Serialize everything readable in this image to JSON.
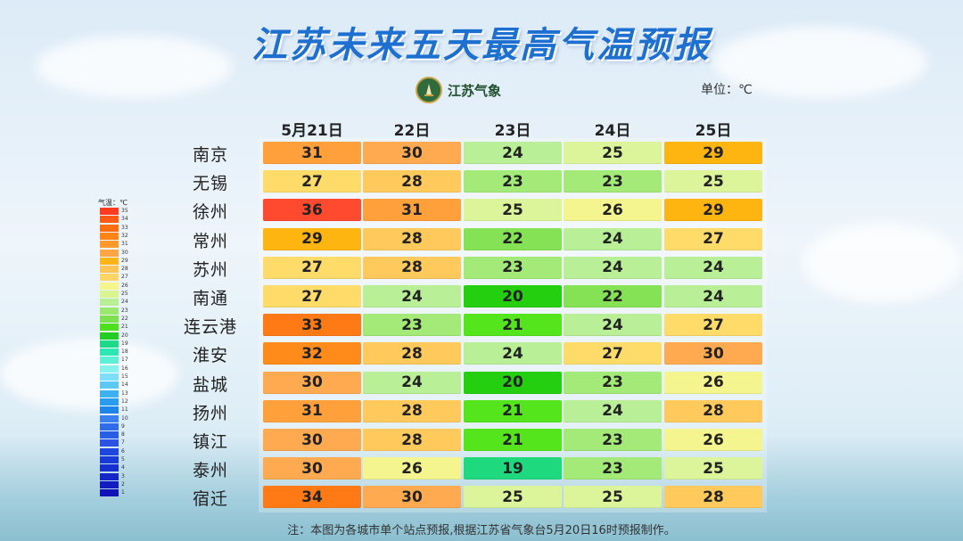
{
  "title": "江苏未来五天最高气温预报",
  "logo": {
    "text": "江苏气象"
  },
  "unit": "单位：℃",
  "footnote": "注：本图为各城市单个站点预报,根据江苏省气象台5月20日16时预报制作。",
  "legend": {
    "title": "气温：℃",
    "stops": [
      {
        "v": "35",
        "c": "#ff3b1f"
      },
      {
        "v": "34",
        "c": "#ff5a14"
      },
      {
        "v": "33",
        "c": "#ff6e0e"
      },
      {
        "v": "32",
        "c": "#ff8414"
      },
      {
        "v": "31",
        "c": "#ff9a2a"
      },
      {
        "v": "30",
        "c": "#ffa545"
      },
      {
        "v": "29",
        "c": "#ffb515"
      },
      {
        "v": "28",
        "c": "#ffc455"
      },
      {
        "v": "27",
        "c": "#ffd665"
      },
      {
        "v": "26",
        "c": "#f5f58a"
      },
      {
        "v": "25",
        "c": "#d8f590"
      },
      {
        "v": "24",
        "c": "#b8ef92"
      },
      {
        "v": "23",
        "c": "#9be86e"
      },
      {
        "v": "22",
        "c": "#7ee04e"
      },
      {
        "v": "21",
        "c": "#4ee01c"
      },
      {
        "v": "20",
        "c": "#22cc22"
      },
      {
        "v": "19",
        "c": "#1ed98a"
      },
      {
        "v": "18",
        "c": "#2ee6b4"
      },
      {
        "v": "17",
        "c": "#5ef0d6"
      },
      {
        "v": "16",
        "c": "#86f2ee"
      },
      {
        "v": "15",
        "c": "#7cdff7"
      },
      {
        "v": "14",
        "c": "#5ec8f5"
      },
      {
        "v": "13",
        "c": "#3eb2f1"
      },
      {
        "v": "12",
        "c": "#2a9ced"
      },
      {
        "v": "11",
        "c": "#1e86e8"
      },
      {
        "v": "10",
        "c": "#3a80ee"
      },
      {
        "v": "9",
        "c": "#2f6ce8"
      },
      {
        "v": "8",
        "c": "#285ee6"
      },
      {
        "v": "7",
        "c": "#2a52e4"
      },
      {
        "v": "6",
        "c": "#1f46de"
      },
      {
        "v": "5",
        "c": "#1a3ad8"
      },
      {
        "v": "4",
        "c": "#1630d0"
      },
      {
        "v": "3",
        "c": "#1426c8"
      },
      {
        "v": "2",
        "c": "#121cc0"
      },
      {
        "v": "1",
        "c": "#1012b5"
      }
    ]
  },
  "chart_data": {
    "type": "table",
    "title": "江苏未来五天最高气温预报",
    "columns": [
      "5月21日",
      "22日",
      "23日",
      "24日",
      "25日"
    ],
    "rows": [
      {
        "city": "南京",
        "values": [
          31,
          30,
          24,
          25,
          29
        ]
      },
      {
        "city": "无锡",
        "values": [
          27,
          28,
          23,
          23,
          25
        ]
      },
      {
        "city": "徐州",
        "values": [
          36,
          31,
          25,
          26,
          29
        ]
      },
      {
        "city": "常州",
        "values": [
          29,
          28,
          22,
          24,
          27
        ]
      },
      {
        "city": "苏州",
        "values": [
          27,
          28,
          23,
          24,
          24
        ]
      },
      {
        "city": "南通",
        "values": [
          27,
          24,
          20,
          22,
          24
        ]
      },
      {
        "city": "连云港",
        "values": [
          33,
          23,
          21,
          24,
          27
        ]
      },
      {
        "city": "淮安",
        "values": [
          32,
          28,
          24,
          27,
          30
        ]
      },
      {
        "city": "盐城",
        "values": [
          30,
          24,
          20,
          23,
          26
        ]
      },
      {
        "city": "扬州",
        "values": [
          31,
          28,
          21,
          24,
          28
        ]
      },
      {
        "city": "镇江",
        "values": [
          30,
          28,
          21,
          23,
          26
        ]
      },
      {
        "city": "泰州",
        "values": [
          30,
          26,
          19,
          23,
          25
        ]
      },
      {
        "city": "宿迁",
        "values": [
          34,
          30,
          25,
          25,
          28
        ]
      }
    ],
    "colors": {
      "36": "#ff4a30",
      "34": "#ff7a14",
      "33": "#ff7a14",
      "32": "#ff8c1a",
      "31": "#ffa03a",
      "30": "#ffaa50",
      "29": "#ffb510",
      "28": "#ffc95c",
      "27": "#ffdc6a",
      "26": "#f5f590",
      "25": "#dcf59a",
      "24": "#b9ef96",
      "23": "#a3ea78",
      "22": "#84e254",
      "21": "#55e51c",
      "20": "#24cf10",
      "19": "#1fd97e"
    }
  }
}
